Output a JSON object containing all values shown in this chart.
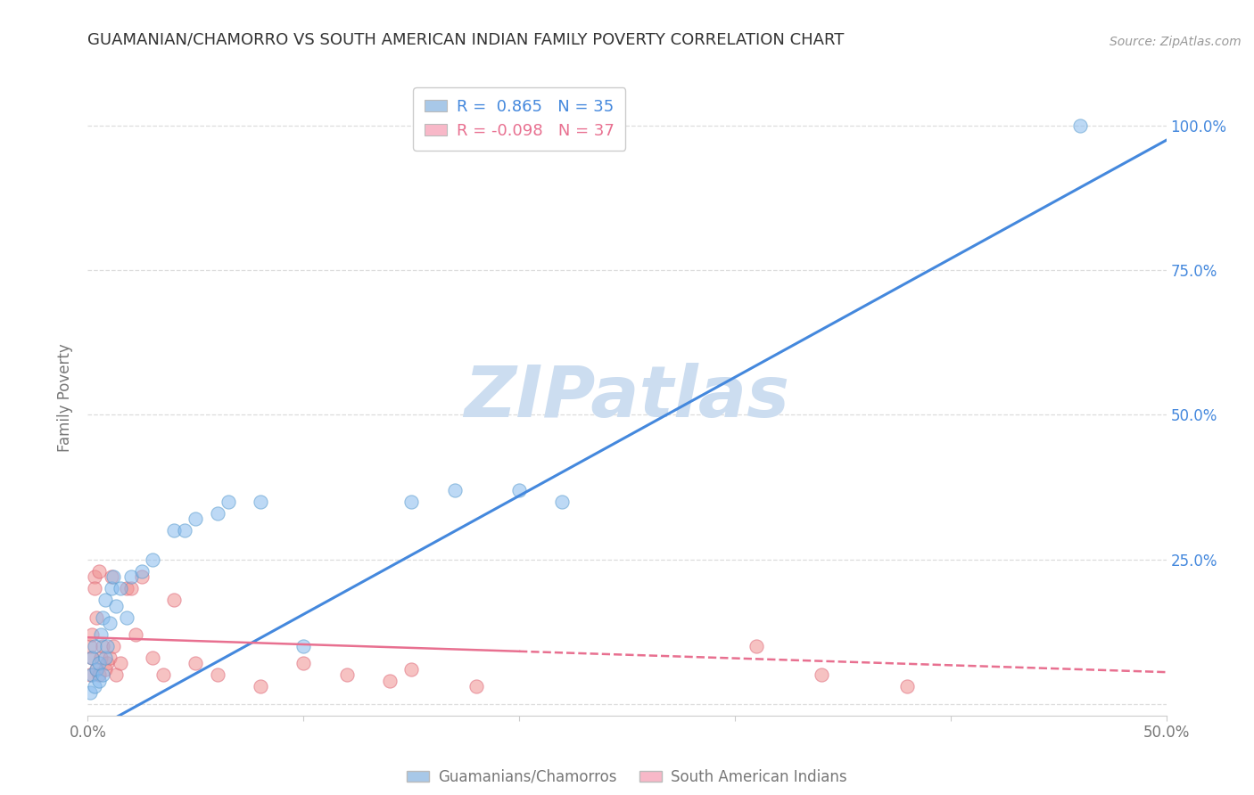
{
  "title": "GUAMANIAN/CHAMORRO VS SOUTH AMERICAN INDIAN FAMILY POVERTY CORRELATION CHART",
  "source": "Source: ZipAtlas.com",
  "ylabel": "Family Poverty",
  "watermark": "ZIPatlas",
  "xlim": [
    0.0,
    0.5
  ],
  "ylim": [
    -0.02,
    1.08
  ],
  "xticks": [
    0.0,
    0.1,
    0.2,
    0.3,
    0.4,
    0.5
  ],
  "xticklabels": [
    "0.0%",
    "",
    "",
    "",
    "",
    "50.0%"
  ],
  "right_yticks": [
    0.0,
    0.25,
    0.5,
    0.75,
    1.0
  ],
  "right_yticklabels": [
    "",
    "25.0%",
    "50.0%",
    "75.0%",
    "100.0%"
  ],
  "legend1_label": "R =  0.865   N = 35",
  "legend2_label": "R = -0.098   N = 37",
  "legend1_color": "#a8c8e8",
  "legend2_color": "#f8b8c8",
  "blue_line_color": "#4488DD",
  "pink_line_color": "#E87090",
  "scatter1_color": "#88BBEE",
  "scatter2_color": "#F09090",
  "scatter1_edge": "#5599CC",
  "scatter2_edge": "#DD6677",
  "background_color": "#ffffff",
  "grid_color": "#dddddd",
  "title_color": "#333333",
  "axis_label_color": "#777777",
  "right_tick_color": "#4488DD",
  "watermark_color": "#CCDDF0",
  "legend_text_blue": "#4488DD",
  "legend_text_pink": "#E87090",
  "guam_x": [
    0.001,
    0.002,
    0.002,
    0.003,
    0.003,
    0.004,
    0.005,
    0.005,
    0.006,
    0.007,
    0.007,
    0.008,
    0.008,
    0.009,
    0.01,
    0.011,
    0.012,
    0.013,
    0.015,
    0.018,
    0.02,
    0.025,
    0.03,
    0.04,
    0.045,
    0.05,
    0.06,
    0.065,
    0.08,
    0.1,
    0.15,
    0.17,
    0.2,
    0.22,
    0.46
  ],
  "guam_y": [
    0.02,
    0.05,
    0.08,
    0.03,
    0.1,
    0.06,
    0.04,
    0.07,
    0.12,
    0.05,
    0.15,
    0.08,
    0.18,
    0.1,
    0.14,
    0.2,
    0.22,
    0.17,
    0.2,
    0.15,
    0.22,
    0.23,
    0.25,
    0.3,
    0.3,
    0.32,
    0.33,
    0.35,
    0.35,
    0.1,
    0.35,
    0.37,
    0.37,
    0.35,
    1.0
  ],
  "sa_x": [
    0.001,
    0.001,
    0.002,
    0.002,
    0.003,
    0.003,
    0.004,
    0.004,
    0.005,
    0.005,
    0.006,
    0.007,
    0.008,
    0.009,
    0.01,
    0.011,
    0.012,
    0.013,
    0.015,
    0.018,
    0.02,
    0.022,
    0.025,
    0.03,
    0.035,
    0.04,
    0.05,
    0.06,
    0.08,
    0.1,
    0.12,
    0.14,
    0.15,
    0.18,
    0.31,
    0.34,
    0.38
  ],
  "sa_y": [
    0.05,
    0.1,
    0.08,
    0.12,
    0.22,
    0.2,
    0.06,
    0.15,
    0.23,
    0.05,
    0.08,
    0.1,
    0.06,
    0.07,
    0.08,
    0.22,
    0.1,
    0.05,
    0.07,
    0.2,
    0.2,
    0.12,
    0.22,
    0.08,
    0.05,
    0.18,
    0.07,
    0.05,
    0.03,
    0.07,
    0.05,
    0.04,
    0.06,
    0.03,
    0.1,
    0.05,
    0.03
  ]
}
